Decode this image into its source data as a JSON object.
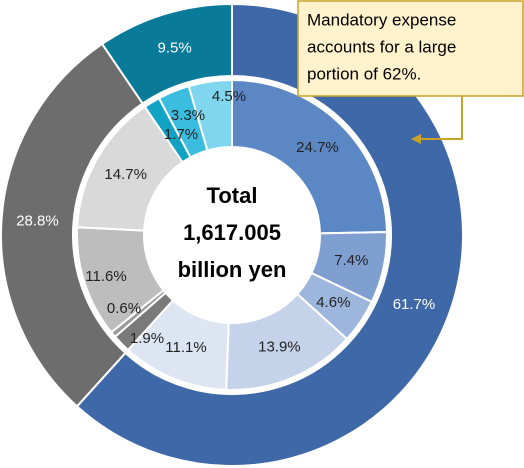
{
  "chart_data": {
    "type": "donut",
    "rings": [
      {
        "values": [
          61.7,
          28.8,
          9.5
        ],
        "value_labels": [
          "61.7%",
          "28.8%",
          "9.5%"
        ],
        "colors": [
          "#3f68a8",
          "#6d6d6d",
          "#0a7a99"
        ]
      },
      {
        "values": [
          24.7,
          7.4,
          4.6,
          13.9,
          11.1,
          1.9,
          0.6,
          11.6,
          14.7,
          1.7,
          3.3,
          4.5
        ],
        "value_labels": [
          "24.7%",
          "7.4%",
          "4.6%",
          "13.9%",
          "11.1%",
          "1.9%",
          "0.6%",
          "11.6%",
          "14.7%",
          "1.7%",
          "3.3%",
          "4.5%"
        ],
        "colors": [
          "#5b87c5",
          "#7f9fd1",
          "#9db6dd",
          "#c5d3ea",
          "#dde5f3",
          "#7a7a7a",
          "#9a9a9a",
          "#bdbdbd",
          "#d9d9d9",
          "#11a2c4",
          "#3bbde0",
          "#7fd6ee"
        ]
      }
    ],
    "center_text": [
      "Total",
      "1,617.005",
      "billion yen"
    ],
    "annotation": [
      "Mandatory expense",
      "accounts for a large",
      "portion of 62%."
    ]
  }
}
